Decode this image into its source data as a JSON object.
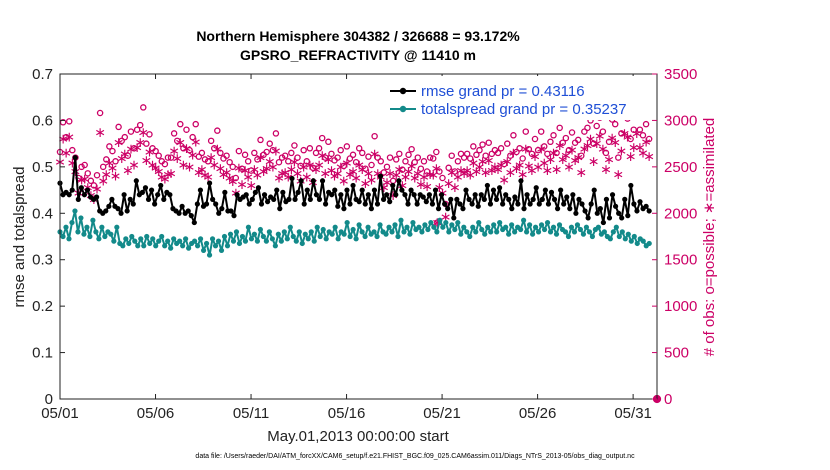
{
  "chart_data": {
    "type": "line",
    "title": "Northern Hemisphere 304382 / 326688 = 93.172%",
    "subtitle": "GPSRO_REFRACTIVITY @ 11410 m",
    "xlabel": "May.01,2013 00:00:00 start",
    "ylabel_left": "rmse and totalspread",
    "ylabel_right": "# of obs: o=possible; ∗=assimilated",
    "footnote": "data file: /Users/raeder/DAI/ATM_forcXX/CAM6_setup/f.e21.FHIST_BGC.f09_025.CAM6assim.011/Diags_NTrS_2013-05/obs_diag_output.nc",
    "x_tick_labels": [
      "05/01",
      "05/06",
      "05/11",
      "05/16",
      "05/21",
      "05/26",
      "05/31"
    ],
    "x_tick_days": [
      0,
      5,
      10,
      15,
      20,
      25,
      30
    ],
    "xlim_days": [
      0,
      31.25
    ],
    "left_axis": {
      "ylim": [
        0,
        0.7
      ],
      "ticks": [
        0,
        0.1,
        0.2,
        0.3,
        0.4,
        0.5,
        0.6,
        0.7
      ],
      "tick_labels": [
        "0",
        "0.1",
        "0.2",
        "0.3",
        "0.4",
        "0.5",
        "0.6",
        "0.7"
      ]
    },
    "right_axis": {
      "ylim": [
        0,
        3500
      ],
      "ticks": [
        0,
        500,
        1000,
        1500,
        2000,
        2500,
        3000,
        3500
      ],
      "tick_labels": [
        "0",
        "500",
        "1000",
        "1500",
        "2000",
        "2500",
        "3000",
        "3500"
      ]
    },
    "series": [
      {
        "name": "rmse grand pr = 0.43116",
        "axis": "left",
        "color": "#000000",
        "values": [
          0.465,
          0.44,
          0.445,
          0.44,
          0.45,
          0.52,
          0.43,
          0.455,
          0.44,
          0.45,
          0.435,
          0.43,
          0.435,
          0.405,
          0.4,
          0.405,
          0.415,
          0.43,
          0.415,
          0.41,
          0.4,
          0.44,
          0.405,
          0.43,
          0.42,
          0.47,
          0.44,
          0.445,
          0.455,
          0.43,
          0.45,
          0.42,
          0.44,
          0.46,
          0.43,
          0.445,
          0.44,
          0.41,
          0.405,
          0.4,
          0.415,
          0.4,
          0.405,
          0.395,
          0.38,
          0.42,
          0.45,
          0.415,
          0.42,
          0.465,
          0.43,
          0.42,
          0.4,
          0.41,
          0.445,
          0.405,
          0.405,
          0.395,
          0.44,
          0.43,
          0.435,
          0.44,
          0.42,
          0.43,
          0.445,
          0.455,
          0.42,
          0.44,
          0.425,
          0.435,
          0.43,
          0.45,
          0.41,
          0.445,
          0.425,
          0.43,
          0.475,
          0.43,
          0.445,
          0.47,
          0.42,
          0.45,
          0.43,
          0.47,
          0.44,
          0.43,
          0.47,
          0.42,
          0.445,
          0.44,
          0.45,
          0.415,
          0.44,
          0.41,
          0.45,
          0.42,
          0.46,
          0.43,
          0.425,
          0.45,
          0.42,
          0.44,
          0.41,
          0.45,
          0.42,
          0.48,
          0.43,
          0.44,
          0.425,
          0.46,
          0.44,
          0.47,
          0.45,
          0.44,
          0.42,
          0.45,
          0.44,
          0.42,
          0.44,
          0.435,
          0.425,
          0.44,
          0.42,
          0.45,
          0.41,
          0.44,
          0.42,
          0.41,
          0.43,
          0.39,
          0.43,
          0.42,
          0.41,
          0.45,
          0.43,
          0.42,
          0.44,
          0.415,
          0.44,
          0.43,
          0.46,
          0.42,
          0.45,
          0.43,
          0.455,
          0.42,
          0.44,
          0.43,
          0.41,
          0.435,
          0.42,
          0.47,
          0.41,
          0.44,
          0.42,
          0.43,
          0.455,
          0.42,
          0.43,
          0.45,
          0.42,
          0.445,
          0.43,
          0.41,
          0.45,
          0.42,
          0.435,
          0.41,
          0.44,
          0.4,
          0.43,
          0.42,
          0.405,
          0.39,
          0.42,
          0.45,
          0.4,
          0.41,
          0.38,
          0.43,
          0.39,
          0.44,
          0.415,
          0.4,
          0.39,
          0.43,
          0.395,
          0.46,
          0.42,
          0.405,
          0.425,
          0.41,
          0.415,
          0.405
        ]
      },
      {
        "name": "totalspread grand pr = 0.35237",
        "axis": "left",
        "color": "#138a8a",
        "values": [
          0.36,
          0.35,
          0.37,
          0.345,
          0.38,
          0.405,
          0.36,
          0.39,
          0.355,
          0.37,
          0.35,
          0.385,
          0.36,
          0.345,
          0.37,
          0.35,
          0.36,
          0.355,
          0.34,
          0.37,
          0.335,
          0.33,
          0.345,
          0.335,
          0.35,
          0.34,
          0.33,
          0.345,
          0.33,
          0.35,
          0.335,
          0.345,
          0.33,
          0.34,
          0.35,
          0.33,
          0.34,
          0.325,
          0.345,
          0.335,
          0.34,
          0.33,
          0.345,
          0.325,
          0.335,
          0.34,
          0.33,
          0.345,
          0.32,
          0.335,
          0.31,
          0.345,
          0.33,
          0.34,
          0.32,
          0.35,
          0.33,
          0.355,
          0.34,
          0.36,
          0.335,
          0.35,
          0.34,
          0.37,
          0.345,
          0.355,
          0.34,
          0.365,
          0.35,
          0.34,
          0.36,
          0.345,
          0.33,
          0.355,
          0.34,
          0.36,
          0.345,
          0.37,
          0.35,
          0.34,
          0.36,
          0.335,
          0.355,
          0.345,
          0.36,
          0.34,
          0.37,
          0.35,
          0.365,
          0.345,
          0.36,
          0.355,
          0.37,
          0.345,
          0.36,
          0.355,
          0.38,
          0.35,
          0.365,
          0.345,
          0.375,
          0.36,
          0.35,
          0.37,
          0.355,
          0.36,
          0.35,
          0.375,
          0.36,
          0.355,
          0.37,
          0.36,
          0.375,
          0.35,
          0.385,
          0.36,
          0.37,
          0.355,
          0.38,
          0.365,
          0.37,
          0.36,
          0.375,
          0.365,
          0.38,
          0.37,
          0.36,
          0.385,
          0.37,
          0.38,
          0.36,
          0.375,
          0.365,
          0.38,
          0.355,
          0.37,
          0.36,
          0.35,
          0.37,
          0.36,
          0.38,
          0.365,
          0.355,
          0.37,
          0.36,
          0.375,
          0.36,
          0.38,
          0.365,
          0.37,
          0.355,
          0.375,
          0.36,
          0.37,
          0.365,
          0.385,
          0.36,
          0.375,
          0.355,
          0.37,
          0.36,
          0.375,
          0.365,
          0.38,
          0.36,
          0.37,
          0.355,
          0.375,
          0.365,
          0.36,
          0.35,
          0.37,
          0.36,
          0.375,
          0.365,
          0.355,
          0.37,
          0.36,
          0.35,
          0.365,
          0.37,
          0.355,
          0.36,
          0.35,
          0.345,
          0.36,
          0.37,
          0.35,
          0.36,
          0.345,
          0.355,
          0.34,
          0.35,
          0.335,
          0.345,
          0.34,
          0.33,
          0.335
        ]
      },
      {
        "name": "possible",
        "axis": "right",
        "marker": "o",
        "color": "#cc0066",
        "values": [
          2660,
          2980,
          2820,
          2990,
          2680,
          2600,
          2380,
          2500,
          2520,
          2430,
          2350,
          2300,
          2410,
          3080,
          2500,
          2580,
          2720,
          2670,
          2560,
          2930,
          2780,
          2820,
          2620,
          2880,
          2700,
          2900,
          2950,
          3140,
          2750,
          2850,
          2700,
          2670,
          2620,
          2560,
          2530,
          2600,
          2600,
          2860,
          2780,
          2960,
          2700,
          2900,
          2680,
          2820,
          2960,
          2610,
          2650,
          2580,
          2560,
          2780,
          2700,
          2890,
          2650,
          2590,
          2620,
          2550,
          2500,
          2380,
          2670,
          2480,
          2630,
          2560,
          2460,
          2650,
          2580,
          2790,
          2630,
          2660,
          2750,
          2680,
          2860,
          2550,
          2600,
          2620,
          2560,
          2650,
          2730,
          2600,
          2510,
          2680,
          2560,
          2700,
          2490,
          2650,
          2700,
          2810,
          2600,
          2770,
          2640,
          2570,
          2600,
          2680,
          2510,
          2720,
          2590,
          2630,
          2550,
          2700,
          2650,
          2480,
          2610,
          2520,
          2830,
          2600,
          2560,
          2440,
          2500,
          2600,
          2350,
          2580,
          2640,
          2470,
          2560,
          2630,
          2690,
          2550,
          2600,
          2480,
          2560,
          2450,
          2600,
          2590,
          2660,
          2450,
          2380,
          2100,
          2490,
          2620,
          2450,
          2560,
          2640,
          2600,
          2640,
          2590,
          2720,
          2630,
          2680,
          2740,
          2620,
          2760,
          2640,
          2680,
          2650,
          2700,
          2530,
          2750,
          2620,
          2840,
          2660,
          2700,
          2590,
          2880,
          2690,
          2640,
          2800,
          2680,
          2880,
          2720,
          2640,
          2770,
          2840,
          2650,
          2920,
          2760,
          2810,
          2680,
          2870,
          2760,
          2790,
          2620,
          2880,
          2920,
          3000,
          2750,
          2940,
          3030,
          2880,
          2650,
          2770,
          3010,
          2960,
          2600,
          2860,
          3060,
          3020,
          2800,
          2900,
          3060,
          2900,
          2840,
          2960,
          2800
        ]
      },
      {
        "name": "assimilated",
        "axis": "right",
        "marker": "*",
        "color": "#cc0066",
        "values": [
          2550,
          2800,
          2650,
          2820,
          2540,
          2450,
          2220,
          2360,
          2370,
          2280,
          2190,
          2150,
          2260,
          2870,
          2350,
          2420,
          2540,
          2490,
          2400,
          2760,
          2590,
          2640,
          2460,
          2690,
          2520,
          2710,
          2760,
          2870,
          2570,
          2660,
          2520,
          2490,
          2450,
          2390,
          2370,
          2420,
          2430,
          2670,
          2590,
          2760,
          2520,
          2700,
          2500,
          2630,
          2770,
          2440,
          2470,
          2410,
          2390,
          2600,
          2520,
          2690,
          2480,
          2420,
          2440,
          2380,
          2340,
          2220,
          2490,
          2310,
          2460,
          2390,
          2300,
          2470,
          2410,
          2600,
          2450,
          2480,
          2560,
          2500,
          2670,
          2380,
          2430,
          2440,
          2390,
          2470,
          2550,
          2430,
          2350,
          2500,
          2390,
          2520,
          2330,
          2470,
          2520,
          2620,
          2430,
          2580,
          2460,
          2400,
          2430,
          2500,
          2350,
          2540,
          2420,
          2450,
          2380,
          2520,
          2470,
          2320,
          2430,
          2360,
          2640,
          2430,
          2390,
          2280,
          2330,
          2430,
          2190,
          2410,
          2470,
          2300,
          2390,
          2450,
          2510,
          2380,
          2430,
          2310,
          2390,
          2290,
          2420,
          2410,
          2480,
          2280,
          2220,
          1960,
          2320,
          2440,
          2280,
          2390,
          2460,
          2430,
          2460,
          2410,
          2540,
          2450,
          2500,
          2560,
          2440,
          2570,
          2460,
          2500,
          2470,
          2520,
          2360,
          2560,
          2440,
          2650,
          2480,
          2520,
          2420,
          2690,
          2510,
          2460,
          2610,
          2500,
          2690,
          2540,
          2460,
          2580,
          2650,
          2470,
          2730,
          2580,
          2620,
          2500,
          2680,
          2570,
          2600,
          2440,
          2690,
          2730,
          2800,
          2560,
          2750,
          2830,
          2690,
          2470,
          2580,
          2810,
          2760,
          2420,
          2670,
          2860,
          2820,
          2610,
          2710,
          2860,
          2710,
          2650,
          2770,
          2610
        ]
      }
    ],
    "special_points": [
      {
        "name": "possible-outlier",
        "axis": "right",
        "x_day": 19.75,
        "value": 1900,
        "marker": "o"
      },
      {
        "name": "assimilated-outlier",
        "axis": "right",
        "x_day": 19.75,
        "value": 1900,
        "marker": "*"
      },
      {
        "name": "right-axis-zero",
        "axis": "right",
        "x_day": 31.25,
        "value": 0,
        "marker": "o"
      }
    ],
    "legend": {
      "placement": "top-right",
      "entries": [
        "rmse grand pr = 0.43116",
        "totalspread grand pr = 0.35237"
      ]
    },
    "grid": false
  }
}
